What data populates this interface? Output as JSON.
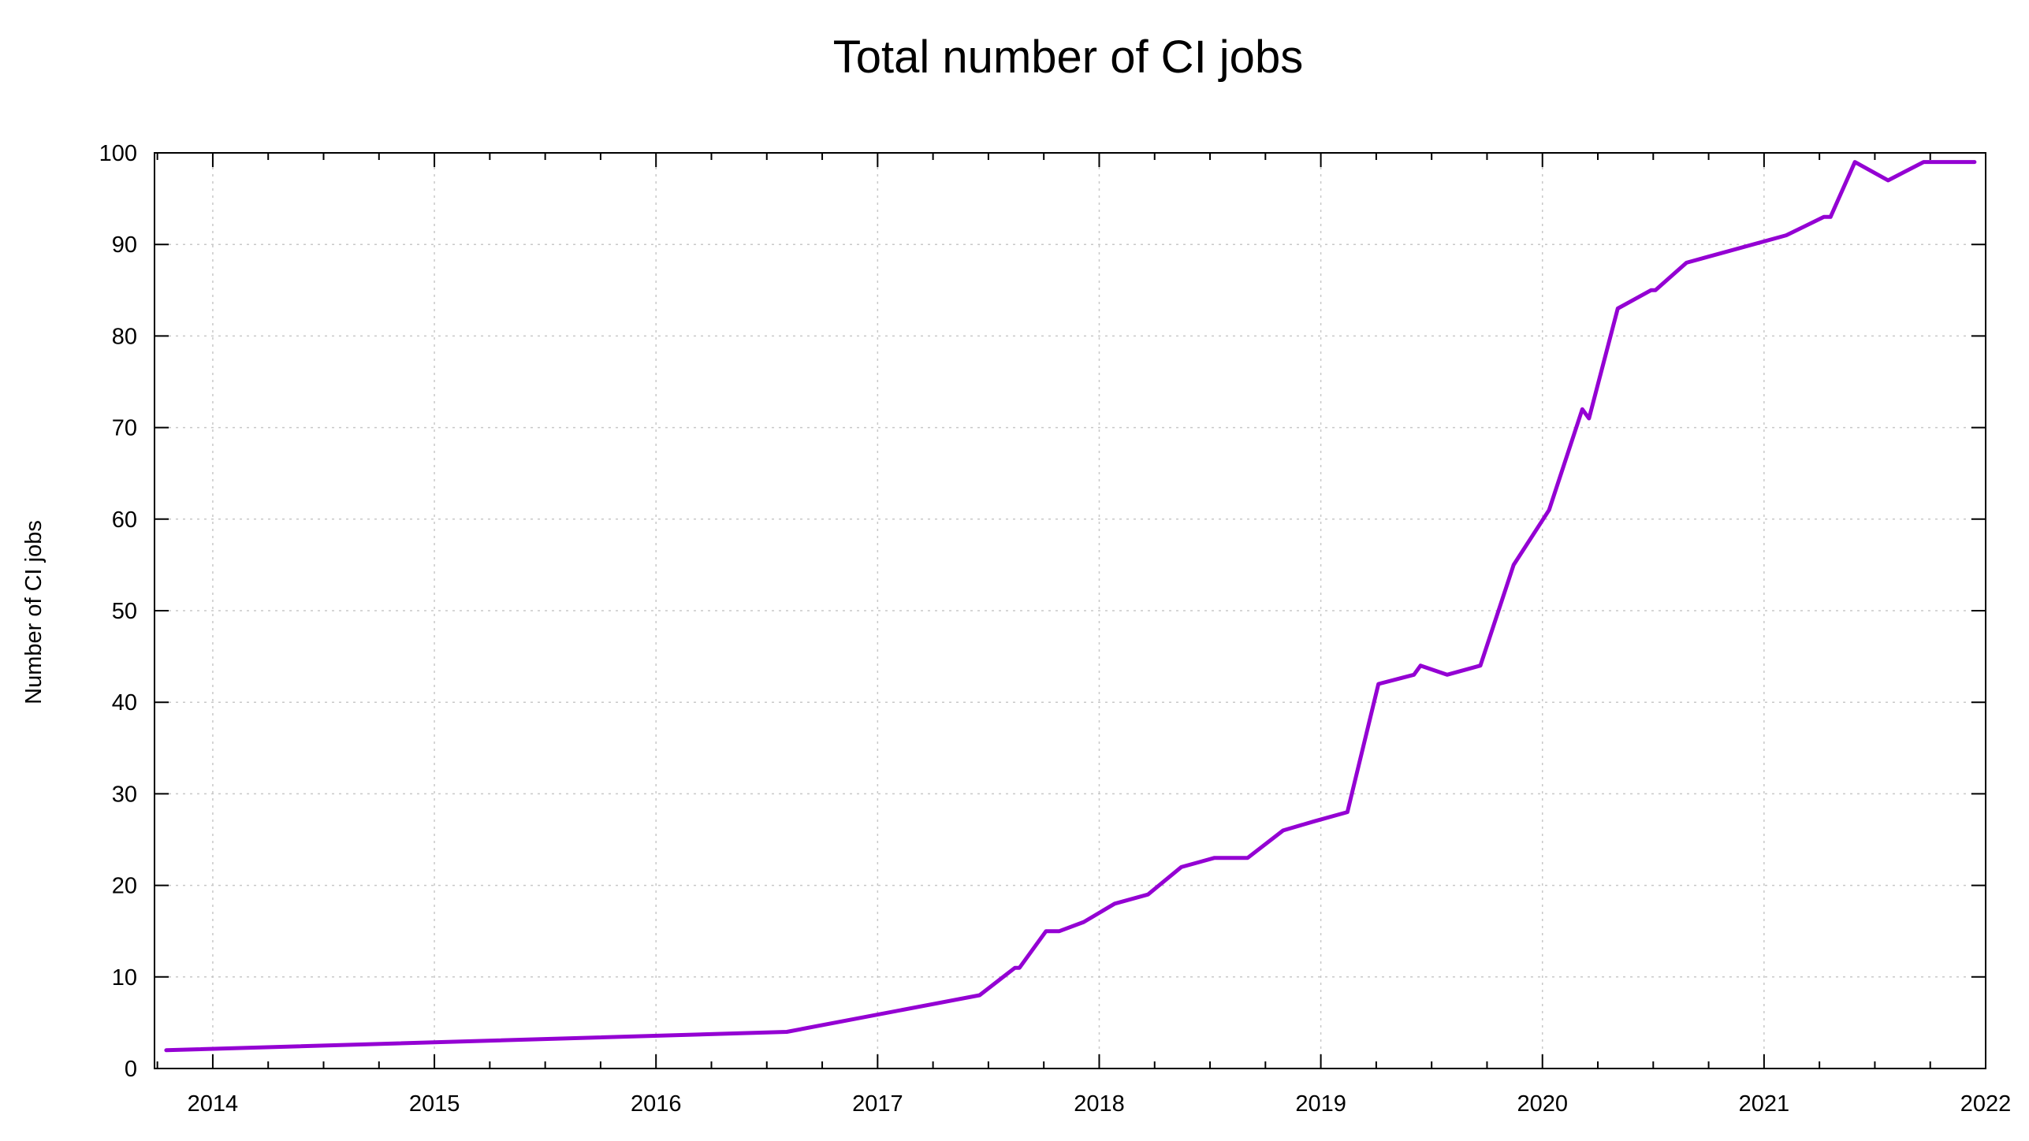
{
  "chart_data": {
    "type": "line",
    "title": "Total number of CI jobs",
    "xlabel": "",
    "ylabel": "Number of CI jobs",
    "xlim": [
      2013.737,
      2022.0
    ],
    "ylim": [
      0,
      100
    ],
    "x_ticks": [
      "2014",
      "2015",
      "2016",
      "2017",
      "2018",
      "2019",
      "2020",
      "2021",
      "2022"
    ],
    "y_ticks": [
      "0",
      "10",
      "20",
      "30",
      "40",
      "50",
      "60",
      "70",
      "80",
      "90",
      "100"
    ],
    "grid": true,
    "legend": "none",
    "series": [
      {
        "color": "#9400d3",
        "points": [
          [
            2013.79,
            2
          ],
          [
            2016.59,
            4
          ],
          [
            2017.46,
            8
          ],
          [
            2017.62,
            11
          ],
          [
            2017.64,
            11
          ],
          [
            2017.76,
            15
          ],
          [
            2017.82,
            15
          ],
          [
            2017.93,
            16
          ],
          [
            2018.07,
            18
          ],
          [
            2018.22,
            19
          ],
          [
            2018.37,
            22
          ],
          [
            2018.52,
            23
          ],
          [
            2018.67,
            23
          ],
          [
            2018.83,
            26
          ],
          [
            2018.97,
            27
          ],
          [
            2019.12,
            28
          ],
          [
            2019.26,
            42
          ],
          [
            2019.42,
            43
          ],
          [
            2019.45,
            44
          ],
          [
            2019.57,
            43
          ],
          [
            2019.72,
            44
          ],
          [
            2019.87,
            55
          ],
          [
            2020.03,
            61
          ],
          [
            2020.18,
            72
          ],
          [
            2020.21,
            71
          ],
          [
            2020.34,
            83
          ],
          [
            2020.49,
            85
          ],
          [
            2020.51,
            85
          ],
          [
            2020.65,
            88
          ],
          [
            2020.8,
            89
          ],
          [
            2021.1,
            91
          ],
          [
            2021.27,
            93
          ],
          [
            2021.3,
            93
          ],
          [
            2021.41,
            99
          ],
          [
            2021.56,
            97
          ],
          [
            2021.72,
            99
          ],
          [
            2021.95,
            99
          ]
        ]
      }
    ]
  }
}
